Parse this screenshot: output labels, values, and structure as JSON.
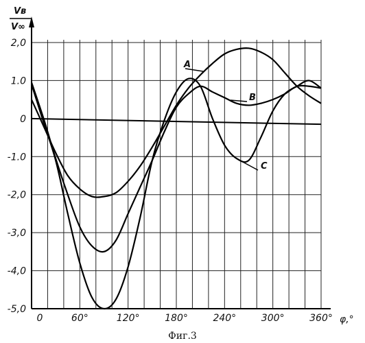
{
  "chart_data": {
    "type": "line",
    "ylabel_top": "Vв",
    "ylabel_bottom": "V∞",
    "xlabel": "φ,°",
    "caption": "Фиг.3",
    "xlim": [
      0,
      360
    ],
    "ylim": [
      -5.0,
      2.0
    ],
    "grid": true,
    "x_ticks": [
      {
        "value": 0,
        "label": "0"
      },
      {
        "value": 60,
        "label": "60°"
      },
      {
        "value": 120,
        "label": "120°"
      },
      {
        "value": 180,
        "label": "180°"
      },
      {
        "value": 240,
        "label": "240°"
      },
      {
        "value": 300,
        "label": "300°"
      },
      {
        "value": 360,
        "label": "360°"
      }
    ],
    "y_ticks": [
      {
        "value": 2.0,
        "label": "2,0"
      },
      {
        "value": 1.0,
        "label": "1.0"
      },
      {
        "value": 0,
        "label": "0"
      },
      {
        "value": -1.0,
        "label": "-1.0"
      },
      {
        "value": -2.0,
        "label": "-2,0"
      },
      {
        "value": -3.0,
        "label": "-3,0"
      },
      {
        "value": -4.0,
        "label": "-4,0"
      },
      {
        "value": -5.0,
        "label": "-5,0"
      }
    ],
    "reference_line": {
      "x": [
        0,
        360
      ],
      "y": [
        0.0,
        -0.15
      ]
    },
    "series": [
      {
        "name": "A",
        "x": [
          0,
          15,
          30,
          45,
          60,
          75,
          90,
          105,
          120,
          135,
          150,
          165,
          180,
          195,
          210,
          225,
          240,
          255,
          270,
          285,
          300,
          315,
          330,
          345,
          360
        ],
        "y": [
          0.5,
          -0.2,
          -0.9,
          -1.5,
          -1.85,
          -2.05,
          -2.05,
          -1.95,
          -1.65,
          -1.25,
          -0.75,
          -0.2,
          0.35,
          0.8,
          1.15,
          1.45,
          1.7,
          1.82,
          1.85,
          1.75,
          1.55,
          1.2,
          0.85,
          0.6,
          0.4
        ]
      },
      {
        "name": "B",
        "x": [
          0,
          15,
          30,
          45,
          60,
          75,
          90,
          105,
          120,
          135,
          150,
          165,
          180,
          195,
          210,
          225,
          240,
          255,
          270,
          285,
          300,
          315,
          330,
          345,
          360
        ],
        "y": [
          0.95,
          0.0,
          -1.05,
          -2.0,
          -2.85,
          -3.35,
          -3.5,
          -3.2,
          -2.5,
          -1.8,
          -1.1,
          -0.35,
          0.3,
          0.65,
          0.85,
          0.7,
          0.55,
          0.4,
          0.35,
          0.4,
          0.5,
          0.65,
          0.85,
          0.85,
          0.8
        ]
      },
      {
        "name": "C",
        "x": [
          0,
          15,
          30,
          45,
          60,
          75,
          90,
          105,
          120,
          135,
          150,
          165,
          180,
          195,
          210,
          225,
          240,
          255,
          270,
          285,
          300,
          315,
          330,
          345,
          360
        ],
        "y": [
          0.9,
          -0.1,
          -1.1,
          -2.5,
          -3.8,
          -4.7,
          -5.0,
          -4.75,
          -3.9,
          -2.6,
          -1.1,
          -0.05,
          0.7,
          1.05,
          0.85,
          0.0,
          -0.7,
          -1.05,
          -1.1,
          -0.5,
          0.2,
          0.65,
          0.85,
          1.0,
          0.8
        ]
      }
    ]
  }
}
